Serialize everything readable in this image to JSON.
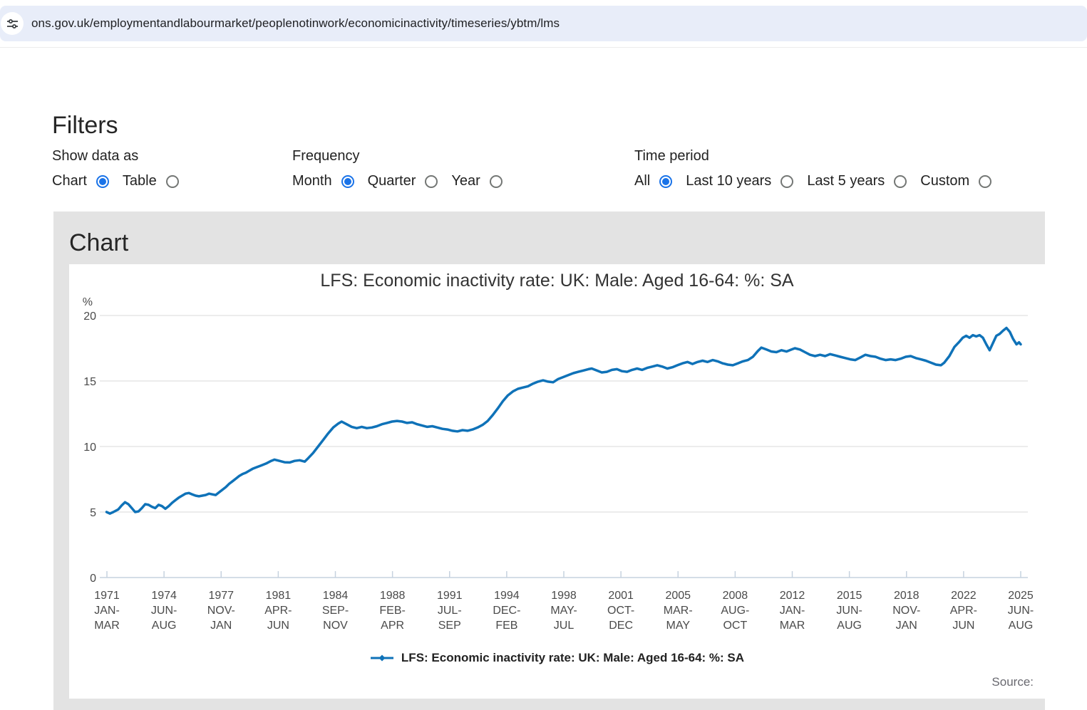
{
  "browser": {
    "url": "ons.gov.uk/employmentandlabourmarket/peoplenotinwork/economicinactivity/timeseries/ybtm/lms"
  },
  "filters": {
    "heading": "Filters",
    "groups": [
      {
        "label": "Show data as",
        "options": [
          {
            "label": "Chart",
            "selected": true
          },
          {
            "label": "Table",
            "selected": false
          }
        ]
      },
      {
        "label": "Frequency",
        "options": [
          {
            "label": "Month",
            "selected": true
          },
          {
            "label": "Quarter",
            "selected": false
          },
          {
            "label": "Year",
            "selected": false
          }
        ]
      },
      {
        "label": "Time period",
        "options": [
          {
            "label": "All",
            "selected": true
          },
          {
            "label": "Last 10 years",
            "selected": false
          },
          {
            "label": "Last 5 years",
            "selected": false
          },
          {
            "label": "Custom",
            "selected": false
          }
        ]
      }
    ]
  },
  "chart_section": {
    "heading": "Chart",
    "source_label": "Source:"
  },
  "chart_data": {
    "type": "line",
    "title": "LFS: Economic inactivity rate: UK: Male: Aged 16-64: %: SA",
    "xlabel": "",
    "ylabel": "%",
    "ylim": [
      0,
      20
    ],
    "yticks": [
      0,
      5,
      10,
      15,
      20
    ],
    "grid": true,
    "legend_position": "bottom",
    "x_range_years": [
      1971.12,
      2025.55
    ],
    "x_tick_labels": [
      [
        "1971",
        "JAN-",
        "MAR"
      ],
      [
        "1974",
        "JUN-",
        "AUG"
      ],
      [
        "1977",
        "NOV-",
        "JAN"
      ],
      [
        "1981",
        "APR-",
        "JUN"
      ],
      [
        "1984",
        "SEP-",
        "NOV"
      ],
      [
        "1988",
        "FEB-",
        "APR"
      ],
      [
        "1991",
        "JUL-",
        "SEP"
      ],
      [
        "1994",
        "DEC-",
        "FEB"
      ],
      [
        "1998",
        "MAY-",
        "JUL"
      ],
      [
        "2001",
        "OCT-",
        "DEC"
      ],
      [
        "2005",
        "MAR-",
        "MAY"
      ],
      [
        "2008",
        "AUG-",
        "OCT"
      ],
      [
        "2012",
        "JAN-",
        "MAR"
      ],
      [
        "2015",
        "JUN-",
        "AUG"
      ],
      [
        "2018",
        "NOV-",
        "JAN"
      ],
      [
        "2022",
        "APR-",
        "JUN"
      ],
      [
        "2025",
        "JUN-",
        "AUG"
      ]
    ],
    "series": [
      {
        "name": "LFS: Economic inactivity rate: UK: Male: Aged 16-64: %: SA",
        "color": "#0f72b8",
        "points": [
          [
            1971.1,
            5.0
          ],
          [
            1971.3,
            4.88
          ],
          [
            1971.5,
            5.0
          ],
          [
            1971.8,
            5.2
          ],
          [
            1972.0,
            5.5
          ],
          [
            1972.2,
            5.75
          ],
          [
            1972.4,
            5.6
          ],
          [
            1972.6,
            5.3
          ],
          [
            1972.8,
            5.0
          ],
          [
            1973.0,
            5.05
          ],
          [
            1973.2,
            5.3
          ],
          [
            1973.4,
            5.6
          ],
          [
            1973.6,
            5.55
          ],
          [
            1973.8,
            5.4
          ],
          [
            1974.0,
            5.3
          ],
          [
            1974.2,
            5.55
          ],
          [
            1974.4,
            5.45
          ],
          [
            1974.6,
            5.25
          ],
          [
            1974.8,
            5.45
          ],
          [
            1975.0,
            5.7
          ],
          [
            1975.2,
            5.9
          ],
          [
            1975.4,
            6.1
          ],
          [
            1975.6,
            6.25
          ],
          [
            1975.8,
            6.4
          ],
          [
            1976.0,
            6.45
          ],
          [
            1976.2,
            6.35
          ],
          [
            1976.4,
            6.25
          ],
          [
            1976.6,
            6.2
          ],
          [
            1976.8,
            6.25
          ],
          [
            1977.0,
            6.3
          ],
          [
            1977.2,
            6.4
          ],
          [
            1977.4,
            6.35
          ],
          [
            1977.6,
            6.3
          ],
          [
            1977.8,
            6.5
          ],
          [
            1978.0,
            6.7
          ],
          [
            1978.2,
            6.9
          ],
          [
            1978.4,
            7.15
          ],
          [
            1978.6,
            7.35
          ],
          [
            1978.8,
            7.55
          ],
          [
            1979.0,
            7.75
          ],
          [
            1979.2,
            7.9
          ],
          [
            1979.4,
            8.0
          ],
          [
            1979.6,
            8.15
          ],
          [
            1979.8,
            8.3
          ],
          [
            1980.0,
            8.4
          ],
          [
            1980.3,
            8.55
          ],
          [
            1980.6,
            8.7
          ],
          [
            1980.9,
            8.9
          ],
          [
            1981.1,
            9.0
          ],
          [
            1981.4,
            8.9
          ],
          [
            1981.7,
            8.8
          ],
          [
            1982.0,
            8.78
          ],
          [
            1982.3,
            8.9
          ],
          [
            1982.6,
            8.95
          ],
          [
            1982.9,
            8.85
          ],
          [
            1983.1,
            9.1
          ],
          [
            1983.4,
            9.5
          ],
          [
            1983.7,
            10.0
          ],
          [
            1984.0,
            10.5
          ],
          [
            1984.3,
            11.0
          ],
          [
            1984.6,
            11.45
          ],
          [
            1984.9,
            11.75
          ],
          [
            1985.1,
            11.9
          ],
          [
            1985.4,
            11.7
          ],
          [
            1985.7,
            11.5
          ],
          [
            1986.0,
            11.4
          ],
          [
            1986.3,
            11.5
          ],
          [
            1986.6,
            11.4
          ],
          [
            1986.9,
            11.45
          ],
          [
            1987.2,
            11.55
          ],
          [
            1987.5,
            11.7
          ],
          [
            1987.8,
            11.8
          ],
          [
            1988.1,
            11.9
          ],
          [
            1988.4,
            11.95
          ],
          [
            1988.7,
            11.9
          ],
          [
            1989.0,
            11.8
          ],
          [
            1989.3,
            11.85
          ],
          [
            1989.6,
            11.7
          ],
          [
            1989.9,
            11.6
          ],
          [
            1990.2,
            11.5
          ],
          [
            1990.5,
            11.55
          ],
          [
            1990.8,
            11.45
          ],
          [
            1991.1,
            11.35
          ],
          [
            1991.4,
            11.3
          ],
          [
            1991.7,
            11.2
          ],
          [
            1992.0,
            11.15
          ],
          [
            1992.3,
            11.25
          ],
          [
            1992.6,
            11.2
          ],
          [
            1992.9,
            11.3
          ],
          [
            1993.2,
            11.45
          ],
          [
            1993.5,
            11.65
          ],
          [
            1993.8,
            11.95
          ],
          [
            1994.1,
            12.4
          ],
          [
            1994.4,
            12.9
          ],
          [
            1994.7,
            13.45
          ],
          [
            1995.0,
            13.9
          ],
          [
            1995.3,
            14.2
          ],
          [
            1995.6,
            14.4
          ],
          [
            1995.9,
            14.5
          ],
          [
            1996.2,
            14.6
          ],
          [
            1996.5,
            14.8
          ],
          [
            1996.8,
            14.95
          ],
          [
            1997.1,
            15.05
          ],
          [
            1997.4,
            14.95
          ],
          [
            1997.7,
            14.9
          ],
          [
            1998.0,
            15.15
          ],
          [
            1998.3,
            15.3
          ],
          [
            1998.6,
            15.45
          ],
          [
            1998.9,
            15.6
          ],
          [
            1999.2,
            15.7
          ],
          [
            1999.5,
            15.8
          ],
          [
            1999.8,
            15.9
          ],
          [
            2000.0,
            15.95
          ],
          [
            2000.3,
            15.8
          ],
          [
            2000.6,
            15.65
          ],
          [
            2000.9,
            15.7
          ],
          [
            2001.2,
            15.85
          ],
          [
            2001.5,
            15.9
          ],
          [
            2001.8,
            15.75
          ],
          [
            2002.1,
            15.7
          ],
          [
            2002.4,
            15.85
          ],
          [
            2002.7,
            15.95
          ],
          [
            2003.0,
            15.85
          ],
          [
            2003.3,
            16.0
          ],
          [
            2003.6,
            16.1
          ],
          [
            2003.9,
            16.2
          ],
          [
            2004.2,
            16.1
          ],
          [
            2004.5,
            15.95
          ],
          [
            2004.8,
            16.05
          ],
          [
            2005.1,
            16.2
          ],
          [
            2005.4,
            16.35
          ],
          [
            2005.7,
            16.45
          ],
          [
            2006.0,
            16.3
          ],
          [
            2006.3,
            16.45
          ],
          [
            2006.6,
            16.55
          ],
          [
            2006.9,
            16.45
          ],
          [
            2007.2,
            16.6
          ],
          [
            2007.5,
            16.5
          ],
          [
            2007.8,
            16.35
          ],
          [
            2008.1,
            16.25
          ],
          [
            2008.4,
            16.2
          ],
          [
            2008.7,
            16.35
          ],
          [
            2009.0,
            16.5
          ],
          [
            2009.3,
            16.6
          ],
          [
            2009.6,
            16.85
          ],
          [
            2009.9,
            17.3
          ],
          [
            2010.1,
            17.55
          ],
          [
            2010.4,
            17.4
          ],
          [
            2010.7,
            17.25
          ],
          [
            2011.0,
            17.2
          ],
          [
            2011.3,
            17.35
          ],
          [
            2011.6,
            17.25
          ],
          [
            2011.9,
            17.4
          ],
          [
            2012.1,
            17.5
          ],
          [
            2012.4,
            17.4
          ],
          [
            2012.7,
            17.2
          ],
          [
            2013.0,
            17.0
          ],
          [
            2013.3,
            16.9
          ],
          [
            2013.6,
            17.0
          ],
          [
            2013.9,
            16.9
          ],
          [
            2014.2,
            17.05
          ],
          [
            2014.5,
            16.95
          ],
          [
            2014.8,
            16.85
          ],
          [
            2015.1,
            16.75
          ],
          [
            2015.4,
            16.65
          ],
          [
            2015.7,
            16.6
          ],
          [
            2016.0,
            16.8
          ],
          [
            2016.3,
            17.0
          ],
          [
            2016.6,
            16.9
          ],
          [
            2016.9,
            16.85
          ],
          [
            2017.2,
            16.7
          ],
          [
            2017.5,
            16.6
          ],
          [
            2017.8,
            16.65
          ],
          [
            2018.1,
            16.6
          ],
          [
            2018.4,
            16.7
          ],
          [
            2018.7,
            16.85
          ],
          [
            2019.0,
            16.9
          ],
          [
            2019.3,
            16.75
          ],
          [
            2019.6,
            16.65
          ],
          [
            2019.9,
            16.55
          ],
          [
            2020.2,
            16.4
          ],
          [
            2020.5,
            16.25
          ],
          [
            2020.8,
            16.2
          ],
          [
            2021.0,
            16.4
          ],
          [
            2021.3,
            16.9
          ],
          [
            2021.6,
            17.6
          ],
          [
            2021.9,
            18.0
          ],
          [
            2022.1,
            18.3
          ],
          [
            2022.3,
            18.45
          ],
          [
            2022.5,
            18.3
          ],
          [
            2022.7,
            18.5
          ],
          [
            2022.9,
            18.4
          ],
          [
            2023.1,
            18.5
          ],
          [
            2023.3,
            18.3
          ],
          [
            2023.5,
            17.8
          ],
          [
            2023.7,
            17.35
          ],
          [
            2023.9,
            17.9
          ],
          [
            2024.1,
            18.45
          ],
          [
            2024.3,
            18.6
          ],
          [
            2024.5,
            18.85
          ],
          [
            2024.7,
            19.05
          ],
          [
            2024.9,
            18.75
          ],
          [
            2025.1,
            18.2
          ],
          [
            2025.3,
            17.8
          ],
          [
            2025.45,
            17.95
          ],
          [
            2025.55,
            17.8
          ]
        ]
      }
    ],
    "colors": {
      "line": "#0f72b8",
      "gridline": "#e6e6e6",
      "axis": "#c6d2df",
      "axis_text": "#4a4a4a"
    }
  }
}
